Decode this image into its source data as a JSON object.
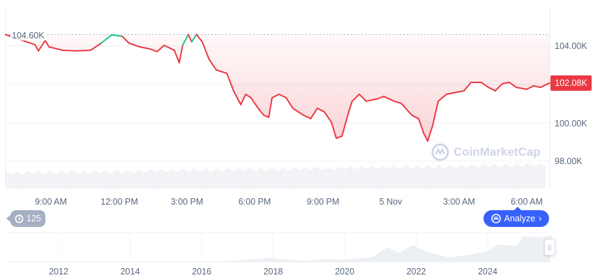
{
  "chart_data": {
    "type": "line",
    "ylim": [
      97.0,
      104.9
    ],
    "y_unit": "K",
    "yticks": [
      "104.00K",
      "102.00K",
      "100.00K",
      "98.00K"
    ],
    "xticks": [
      "9:00 AM",
      "12:00 PM",
      "3:00 PM",
      "6:00 PM",
      "9:00 PM",
      "5 Nov",
      "3:00 AM",
      "6:00 AM"
    ],
    "max_label": "104.60K",
    "current_price": "102.08K",
    "line_color": "#ea3943",
    "grid": true,
    "points": [
      [
        "07:00",
        104.6
      ],
      [
        "08:18",
        104.07
      ],
      [
        "08:27",
        103.75
      ],
      [
        "08:45",
        104.29
      ],
      [
        "08:55",
        103.96
      ],
      [
        "09:32",
        103.78
      ],
      [
        "10:08",
        103.75
      ],
      [
        "10:45",
        103.78
      ],
      [
        "11:13",
        104.15
      ],
      [
        "11:41",
        104.58
      ],
      [
        "12:09",
        104.51
      ],
      [
        "12:27",
        104.15
      ],
      [
        "12:55",
        103.96
      ],
      [
        "13:23",
        103.85
      ],
      [
        "13:41",
        103.71
      ],
      [
        "14:00",
        104.04
      ],
      [
        "14:27",
        103.78
      ],
      [
        "14:40",
        103.13
      ],
      [
        "14:49",
        104.04
      ],
      [
        "15:04",
        104.6
      ],
      [
        "15:13",
        104.22
      ],
      [
        "15:26",
        104.6
      ],
      [
        "15:41",
        104.22
      ],
      [
        "15:59",
        103.31
      ],
      [
        "16:18",
        102.76
      ],
      [
        "16:46",
        102.58
      ],
      [
        "17:04",
        101.67
      ],
      [
        "17:23",
        100.95
      ],
      [
        "17:36",
        101.49
      ],
      [
        "17:50",
        101.31
      ],
      [
        "18:09",
        100.76
      ],
      [
        "18:24",
        100.4
      ],
      [
        "18:37",
        100.29
      ],
      [
        "18:46",
        101.31
      ],
      [
        "19:04",
        101.49
      ],
      [
        "19:23",
        101.31
      ],
      [
        "19:41",
        100.76
      ],
      [
        "20:09",
        100.4
      ],
      [
        "20:28",
        100.22
      ],
      [
        "20:46",
        100.76
      ],
      [
        "21:04",
        100.58
      ],
      [
        "21:23",
        100.04
      ],
      [
        "21:36",
        99.2
      ],
      [
        "21:51",
        99.31
      ],
      [
        "22:09",
        100.58
      ],
      [
        "22:18",
        101.13
      ],
      [
        "22:37",
        101.49
      ],
      [
        "22:55",
        101.13
      ],
      [
        "23:23",
        101.24
      ],
      [
        "23:42",
        101.38
      ],
      [
        "00:09",
        101.13
      ],
      [
        "00:28",
        101.02
      ],
      [
        "00:56",
        100.4
      ],
      [
        "01:14",
        100.22
      ],
      [
        "01:27",
        99.49
      ],
      [
        "01:38",
        99.05
      ],
      [
        "01:51",
        99.85
      ],
      [
        "02:06",
        101.13
      ],
      [
        "02:28",
        101.49
      ],
      [
        "02:56",
        101.6
      ],
      [
        "03:14",
        101.67
      ],
      [
        "03:33",
        102.11
      ],
      [
        "04:00",
        102.11
      ],
      [
        "04:19",
        101.85
      ],
      [
        "04:37",
        101.67
      ],
      [
        "04:56",
        102.04
      ],
      [
        "05:14",
        102.11
      ],
      [
        "05:33",
        101.85
      ],
      [
        "06:00",
        101.75
      ],
      [
        "06:19",
        101.93
      ],
      [
        "06:37",
        101.85
      ],
      [
        "07:01",
        102.08
      ]
    ],
    "navigator": {
      "xticks": [
        "2012",
        "2014",
        "2016",
        "2018",
        "2020",
        "2022",
        "2024"
      ],
      "years": [
        2010.5,
        2013,
        2016,
        2017,
        2017.9,
        2018.5,
        2019,
        2019.5,
        2020,
        2020.8,
        2021.2,
        2021.5,
        2021.9,
        2022.3,
        2022.9,
        2023.5,
        2024,
        2024.3,
        2024.8,
        2025,
        2025.5,
        2025.8
      ],
      "values": [
        0,
        0.5,
        1,
        5,
        15,
        7,
        4,
        10,
        8,
        20,
        58,
        35,
        65,
        40,
        17,
        28,
        43,
        68,
        62,
        100,
        95,
        104
      ]
    }
  },
  "buttons": {
    "history_count": "125",
    "analyze": "Analyze"
  },
  "watermark": "CoinMarketCap",
  "colors": {
    "accent": "#3861fb",
    "down": "#ea3943",
    "up": "#16c784"
  }
}
